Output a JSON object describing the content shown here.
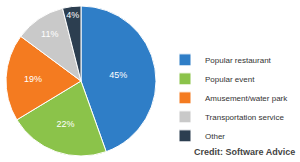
{
  "chart_data": {
    "type": "pie",
    "categories": [
      "Popular restaurant",
      "Popular event",
      "Amusement/water park",
      "Transportation service",
      "Other"
    ],
    "values": [
      45,
      22,
      19,
      11,
      4
    ],
    "value_labels": [
      "45%",
      "22%",
      "19%",
      "11%",
      "4%"
    ],
    "colors": [
      "#2f7ec7",
      "#8bc34a",
      "#f47b20",
      "#c9c9c9",
      "#2c3e50"
    ],
    "data_labels": true,
    "legend": "right",
    "annotations": [
      "Credit: Software Advice"
    ]
  }
}
